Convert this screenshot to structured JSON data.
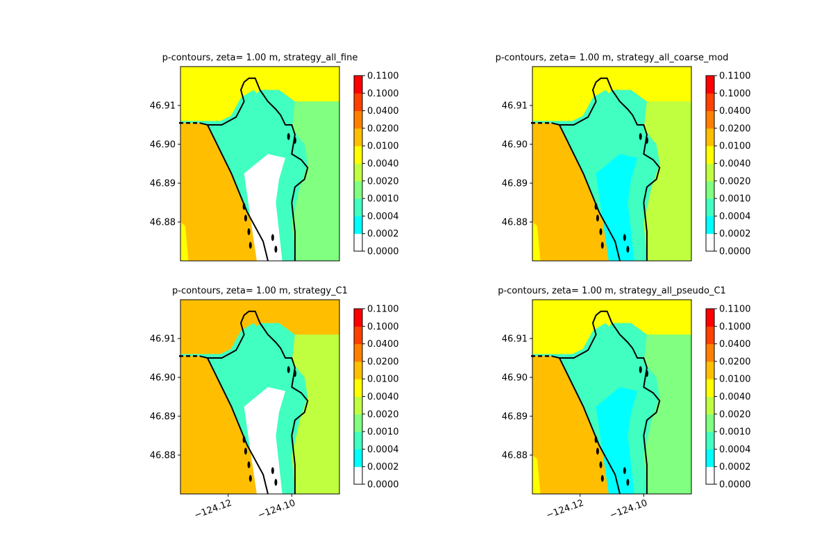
{
  "palette": {
    "level_colors": [
      "#ffffff",
      "#00ffff",
      "#40ffc0",
      "#80ff80",
      "#c0ff40",
      "#ffff00",
      "#ffbf00",
      "#ff8000",
      "#ff4000",
      "#ff0000"
    ],
    "shore_color": "#000000"
  },
  "chart_data": [
    {
      "type": "heatmap",
      "panel": "top-left",
      "title": "p-contours, zeta= 1.00 m, strategy_all_fine",
      "xlim": [
        -124.135,
        -124.085
      ],
      "ylim": [
        46.87,
        46.92
      ],
      "yticks": [
        46.88,
        46.89,
        46.9,
        46.91
      ],
      "ytick_labels": [
        "46.88",
        "46.89",
        "46.90",
        "46.91"
      ],
      "xticks": [],
      "xtick_labels": [],
      "colorbar_levels": [
        "0.0000",
        "0.0002",
        "0.0004",
        "0.0010",
        "0.0020",
        "0.0040",
        "0.0100",
        "0.0200",
        "0.0400",
        "0.1000",
        "0.1100"
      ],
      "zones": {
        "ocean": 6,
        "north": 5,
        "east": 3,
        "inner": 2,
        "channel": 0,
        "west_edge": 5
      }
    },
    {
      "type": "heatmap",
      "panel": "top-right",
      "title": "p-contours, zeta= 1.00 m, strategy_all_coarse_mod",
      "xlim": [
        -124.135,
        -124.085
      ],
      "ylim": [
        46.87,
        46.92
      ],
      "yticks": [
        46.88,
        46.89,
        46.9,
        46.91
      ],
      "ytick_labels": [
        "46.88",
        "46.89",
        "46.90",
        "46.91"
      ],
      "xticks": [],
      "xtick_labels": [],
      "colorbar_levels": [
        "0.0000",
        "0.0002",
        "0.0004",
        "0.0010",
        "0.0020",
        "0.0040",
        "0.0100",
        "0.0200",
        "0.0400",
        "0.1000",
        "0.1100"
      ],
      "zones": {
        "ocean": 6,
        "north": 5,
        "east": 4,
        "inner": 2,
        "channel": 1,
        "west_edge": 5
      }
    },
    {
      "type": "heatmap",
      "panel": "bottom-left",
      "title": "p-contours, zeta= 1.00 m, strategy_C1",
      "xlim": [
        -124.135,
        -124.085
      ],
      "ylim": [
        46.87,
        46.92
      ],
      "yticks": [
        46.88,
        46.89,
        46.9,
        46.91
      ],
      "ytick_labels": [
        "46.88",
        "46.89",
        "46.90",
        "46.91"
      ],
      "xticks": [
        -124.12,
        -124.1
      ],
      "xtick_labels": [
        "−124.12",
        "−124.10"
      ],
      "colorbar_levels": [
        "0.0000",
        "0.0002",
        "0.0004",
        "0.0010",
        "0.0020",
        "0.0040",
        "0.0100",
        "0.0200",
        "0.0400",
        "0.1000",
        "0.1100"
      ],
      "zones": {
        "ocean": 6,
        "north": 6,
        "east": 4,
        "inner": 2,
        "channel": 0,
        "west_edge": 6
      }
    },
    {
      "type": "heatmap",
      "panel": "bottom-right",
      "title": "p-contours, zeta= 1.00 m, strategy_all_pseudo_C1",
      "xlim": [
        -124.135,
        -124.085
      ],
      "ylim": [
        46.87,
        46.92
      ],
      "yticks": [
        46.88,
        46.89,
        46.9,
        46.91
      ],
      "ytick_labels": [
        "46.88",
        "46.89",
        "46.90",
        "46.91"
      ],
      "xticks": [
        -124.12,
        -124.1
      ],
      "xtick_labels": [
        "−124.12",
        "−124.10"
      ],
      "colorbar_levels": [
        "0.0000",
        "0.0002",
        "0.0004",
        "0.0010",
        "0.0020",
        "0.0040",
        "0.0100",
        "0.0200",
        "0.0400",
        "0.1000",
        "0.1100"
      ],
      "zones": {
        "ocean": 6,
        "north": 5,
        "east": 3,
        "inner": 2,
        "channel": 1,
        "west_edge": 5
      }
    }
  ]
}
